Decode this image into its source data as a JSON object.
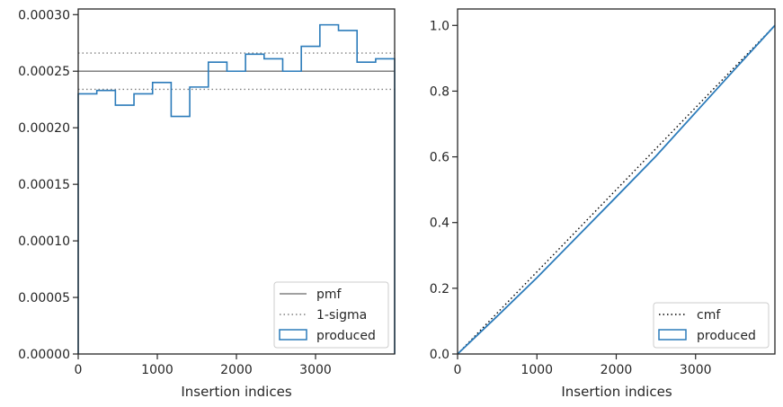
{
  "chart_data": [
    {
      "type": "step-histogram",
      "xlabel": "Insertion indices",
      "ylabel": "",
      "xlim": [
        0,
        4000
      ],
      "ylim": [
        0,
        0.000305
      ],
      "x_ticks": [
        0,
        1000,
        2000,
        3000
      ],
      "y_ticks": [
        0,
        5e-05,
        0.0001,
        0.00015,
        0.0002,
        0.00025,
        0.0003
      ],
      "y_tick_labels": [
        "0.00000",
        "0.00005",
        "0.00010",
        "0.00015",
        "0.00020",
        "0.00025",
        "0.00030"
      ],
      "grid": false,
      "legend_position": "lower-right",
      "bin_edges": [
        0,
        235,
        470,
        705,
        940,
        1175,
        1410,
        1645,
        1880,
        2115,
        2350,
        2585,
        2820,
        3055,
        3290,
        3525,
        3760,
        4000
      ],
      "series": [
        {
          "name": "produced",
          "kind": "step",
          "color": "#2b7bba",
          "values": [
            0.00023,
            0.000233,
            0.00022,
            0.00023,
            0.00024,
            0.00021,
            0.000236,
            0.000258,
            0.00025,
            0.000265,
            0.000261,
            0.00025,
            0.000272,
            0.000291,
            0.000286,
            0.000258,
            0.000261
          ]
        }
      ],
      "reference_lines": [
        {
          "name": "pmf",
          "style": "solid",
          "color": "#808080",
          "y": 0.00025
        },
        {
          "name": "1-sigma",
          "style": "dotted",
          "color": "#808080",
          "y": 0.000266
        },
        {
          "name": "1-sigma",
          "style": "dotted",
          "color": "#808080",
          "y": 0.000234
        }
      ],
      "legend": [
        {
          "label": "pmf",
          "kind": "line-solid",
          "color": "#808080"
        },
        {
          "label": "1-sigma",
          "kind": "line-dotted",
          "color": "#808080"
        },
        {
          "label": "produced",
          "kind": "patch",
          "color": "#2b7bba"
        }
      ]
    },
    {
      "type": "line",
      "xlabel": "Insertion indices",
      "ylabel": "",
      "xlim": [
        0,
        4000
      ],
      "ylim": [
        0,
        1.05
      ],
      "x_ticks": [
        0,
        1000,
        2000,
        3000
      ],
      "y_ticks": [
        0.0,
        0.2,
        0.4,
        0.6,
        0.8,
        1.0
      ],
      "y_tick_labels": [
        "0.0",
        "0.2",
        "0.4",
        "0.6",
        "0.8",
        "1.0"
      ],
      "grid": false,
      "legend_position": "lower-right",
      "series": [
        {
          "name": "cmf",
          "style": "dotted",
          "color": "#000000",
          "x": [
            0,
            4000
          ],
          "y": [
            0,
            1.0
          ]
        },
        {
          "name": "produced",
          "style": "solid",
          "color": "#2b7bba",
          "x": [
            0,
            500,
            1000,
            1500,
            2000,
            2500,
            3000,
            3500,
            4000
          ],
          "y": [
            0,
            0.115,
            0.232,
            0.355,
            0.478,
            0.602,
            0.735,
            0.868,
            1.0
          ]
        }
      ],
      "legend": [
        {
          "label": "cmf",
          "kind": "line-dotted",
          "color": "#000000"
        },
        {
          "label": "produced",
          "kind": "patch",
          "color": "#2b7bba"
        }
      ]
    }
  ]
}
